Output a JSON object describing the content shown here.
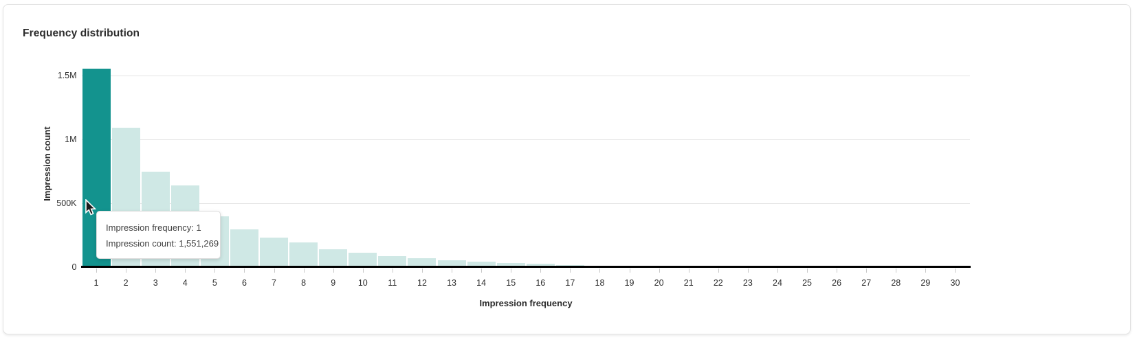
{
  "card": {
    "title": "Frequency distribution"
  },
  "chart_data": {
    "type": "bar",
    "title": "Frequency distribution",
    "xlabel": "Impression frequency",
    "ylabel": "Impression count",
    "categories": [
      "1",
      "2",
      "3",
      "4",
      "5",
      "6",
      "7",
      "8",
      "9",
      "10",
      "11",
      "12",
      "13",
      "14",
      "15",
      "16",
      "17",
      "18",
      "19",
      "20",
      "21",
      "22",
      "23",
      "24",
      "25",
      "26",
      "27",
      "28",
      "29",
      "30"
    ],
    "values": [
      1551269,
      1090000,
      748000,
      640000,
      398000,
      298000,
      232000,
      195000,
      141000,
      114000,
      87000,
      72000,
      55000,
      45000,
      32000,
      28000,
      18000,
      13000,
      8000,
      4000,
      2000,
      1500,
      1100,
      800,
      600,
      450,
      350,
      280,
      220,
      180
    ],
    "highlighted_category": "1",
    "highlighted_index": 0,
    "ylim": [
      0,
      1580000
    ],
    "yticks": [
      {
        "value": 0,
        "label": "0"
      },
      {
        "value": 500000,
        "label": "500K"
      },
      {
        "value": 1000000,
        "label": "1M"
      },
      {
        "value": 1500000,
        "label": "1.5M"
      }
    ],
    "grid": "horizontal-only",
    "legend": "none",
    "colors": {
      "bar": "#cfe8e5",
      "bar_highlight": "#13938e",
      "gridline": "#e3e3e3",
      "axis_line": "#000000",
      "tick_mark": "#c8c8c8",
      "text": "#2d2d2d"
    }
  },
  "tooltip": {
    "line1": "Impression frequency: 1",
    "line2": "Impression count: 1,551,269"
  }
}
